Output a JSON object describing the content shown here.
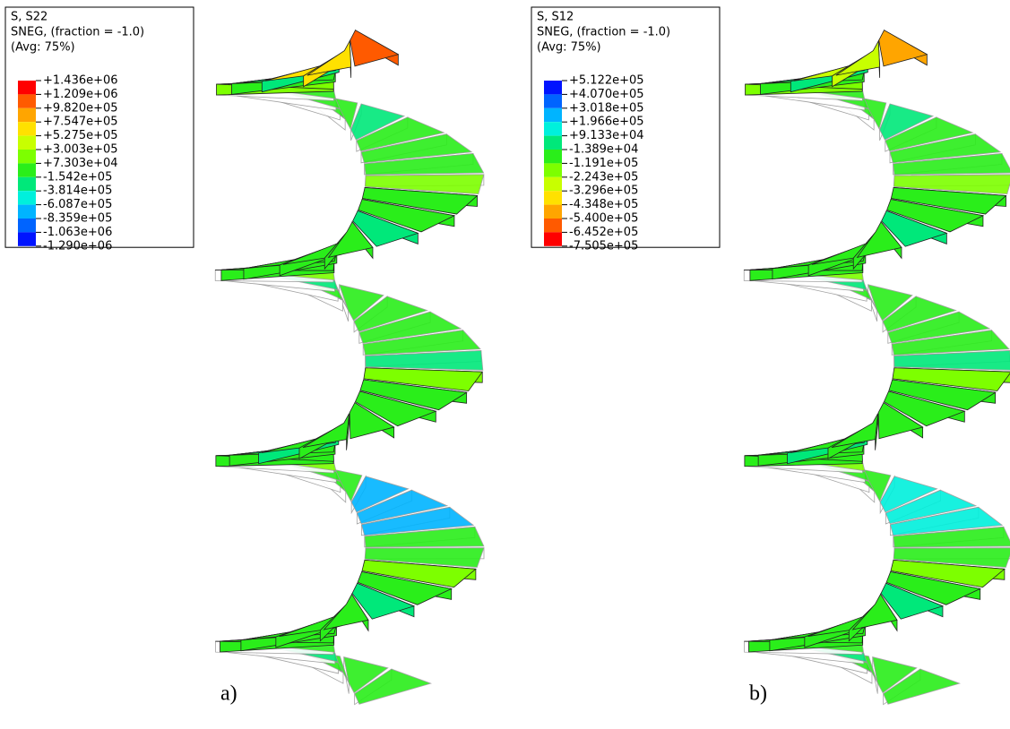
{
  "panels": [
    {
      "legend": {
        "lines": [
          "S, S22",
          "SNEG, (fraction = -1.0)",
          "(Avg: 75%)"
        ],
        "labels": [
          "+1.436e+06",
          "+1.209e+06",
          "+9.820e+05",
          "+7.547e+05",
          "+5.275e+05",
          "+3.003e+05",
          "+7.303e+04",
          "-1.542e+05",
          "-3.814e+05",
          "-6.087e+05",
          "-8.359e+05",
          "-1.063e+06",
          "-1.290e+06"
        ],
        "colors": [
          "#ff0000",
          "#ff5a00",
          "#ffa500",
          "#ffe100",
          "#c8ff00",
          "#7dff00",
          "#2aee1a",
          "#00e87a",
          "#00f0dc",
          "#00b4ff",
          "#0064ff",
          "#0014ff"
        ]
      },
      "caption": "a)"
    },
    {
      "legend": {
        "lines": [
          "S, S12",
          "SNEG, (fraction = -1.0)",
          "(Avg: 75%)"
        ],
        "labels": [
          "+5.122e+05",
          "+4.070e+05",
          "+3.018e+05",
          "+1.966e+05",
          "+9.133e+04",
          "-1.389e+04",
          "-1.191e+05",
          "-2.243e+05",
          "-3.296e+05",
          "-4.348e+05",
          "-5.400e+05",
          "-6.452e+05",
          "-7.505e+05"
        ],
        "colors": [
          "#0014ff",
          "#0064ff",
          "#00b4ff",
          "#00f0dc",
          "#00e87a",
          "#2aee1a",
          "#7dff00",
          "#c8ff00",
          "#ffe100",
          "#ffa500",
          "#ff5a00",
          "#ff0000"
        ]
      },
      "caption": "b)"
    }
  ]
}
